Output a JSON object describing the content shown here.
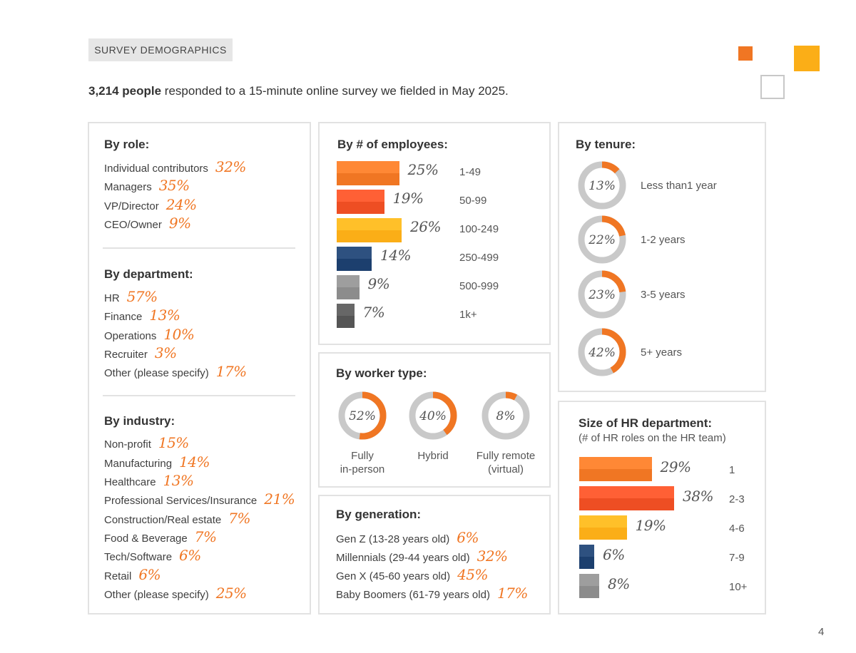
{
  "header": {
    "tag": "SURVEY DEMOGRAPHICS",
    "intro_bold": "3,214 people",
    "intro_rest": "responded to a 15-minute online survey we fielded in May 2025."
  },
  "role": {
    "title": "By role:",
    "items": [
      {
        "label": "Individual contributors",
        "pct": "32%"
      },
      {
        "label": "Managers",
        "pct": "35%"
      },
      {
        "label": "VP/Director",
        "pct": "24%"
      },
      {
        "label": "CEO/Owner",
        "pct": "9%"
      }
    ]
  },
  "department": {
    "title": "By department:",
    "items": [
      {
        "label": "HR",
        "pct": "57%"
      },
      {
        "label": "Finance",
        "pct": "13%"
      },
      {
        "label": "Operations",
        "pct": "10%"
      },
      {
        "label": "Recruiter",
        "pct": "3%"
      },
      {
        "label": "Other (please specify)",
        "pct": "17%"
      }
    ]
  },
  "industry": {
    "title": "By industry:",
    "items": [
      {
        "label": "Non-profit",
        "pct": "15%"
      },
      {
        "label": "Manufacturing",
        "pct": "14%"
      },
      {
        "label": "Healthcare",
        "pct": "13%"
      },
      {
        "label": "Professional Services/Insurance",
        "pct": "21%"
      },
      {
        "label": "Construction/Real estate",
        "pct": "7%"
      },
      {
        "label": "Food & Beverage",
        "pct": "7%"
      },
      {
        "label": "Tech/Software",
        "pct": "6%"
      },
      {
        "label": "Retail",
        "pct": "6%"
      },
      {
        "label": "Other (please specify)",
        "pct": "25%"
      }
    ]
  },
  "employees": {
    "title": "By # of employees:",
    "items": [
      {
        "label": "1-49",
        "value": 25,
        "pct": "25%",
        "color": "#f07623"
      },
      {
        "label": "50-99",
        "value": 19,
        "pct": "19%",
        "color": "#ee4e23"
      },
      {
        "label": "100-249",
        "value": 26,
        "pct": "26%",
        "color": "#fbae17"
      },
      {
        "label": "250-499",
        "value": 14,
        "pct": "14%",
        "color": "#1c3f6e"
      },
      {
        "label": "500-999",
        "value": 9,
        "pct": "9%",
        "color": "#8c8c8c"
      },
      {
        "label": "1k+",
        "value": 7,
        "pct": "7%",
        "color": "#555555"
      }
    ]
  },
  "worker": {
    "title": "By worker type:",
    "items": [
      {
        "label1": "Fully",
        "label2": "in-person",
        "value": 52,
        "pct": "52%"
      },
      {
        "label1": "Hybrid",
        "label2": "",
        "value": 40,
        "pct": "40%"
      },
      {
        "label1": "Fully remote",
        "label2": "(virtual)",
        "value": 8,
        "pct": "8%"
      }
    ]
  },
  "generation": {
    "title": "By generation:",
    "items": [
      {
        "label": "Gen Z (13-28 years old)",
        "pct": "6%"
      },
      {
        "label": "Millennials (29-44 years old)",
        "pct": "32%"
      },
      {
        "label": "Gen X (45-60 years old)",
        "pct": "45%"
      },
      {
        "label": "Baby Boomers (61-79 years old)",
        "pct": "17%"
      }
    ]
  },
  "tenure": {
    "title": "By tenure:",
    "items": [
      {
        "label": "Less than1 year",
        "value": 13,
        "pct": "13%"
      },
      {
        "label": "1-2 years",
        "value": 22,
        "pct": "22%"
      },
      {
        "label": "3-5 years",
        "value": 23,
        "pct": "23%"
      },
      {
        "label": "5+ years",
        "value": 42,
        "pct": "42%"
      }
    ]
  },
  "hrsize": {
    "title": "Size of HR department:",
    "subtitle": "(# of HR roles on the HR team)",
    "items": [
      {
        "label": "1",
        "value": 29,
        "pct": "29%",
        "color": "#f07623"
      },
      {
        "label": "2-3",
        "value": 38,
        "pct": "38%",
        "color": "#ee4e23"
      },
      {
        "label": "4-6",
        "value": 19,
        "pct": "19%",
        "color": "#fbae17"
      },
      {
        "label": "7-9",
        "value": 6,
        "pct": "6%",
        "color": "#1c3f6e"
      },
      {
        "label": "10+",
        "value": 8,
        "pct": "8%",
        "color": "#8c8c8c"
      }
    ]
  },
  "colors": {
    "accent": "#f07623",
    "ring": "#c9c9c9"
  },
  "page_number": "4"
}
